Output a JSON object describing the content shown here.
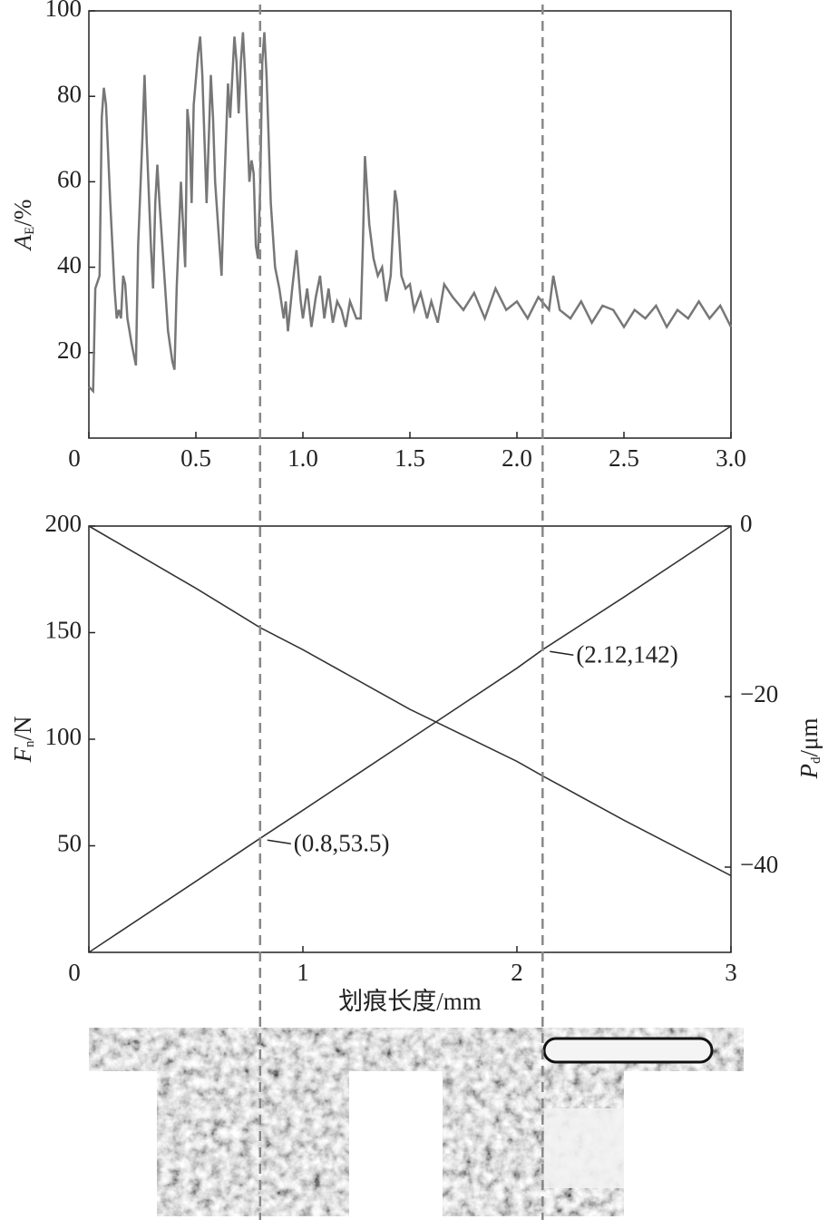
{
  "chart_data": [
    {
      "type": "line",
      "ylabel": {
        "symbol": "A",
        "subscript": "E",
        "unit": "/%"
      },
      "xlim": [
        0,
        3
      ],
      "ylim": [
        0,
        100
      ],
      "xticks": [
        0,
        0.5,
        {
          "value": 1,
          "label": "1.0"
        },
        1.5,
        {
          "value": 2,
          "label": "2.0"
        },
        2.5,
        {
          "value": 3,
          "label": "3.0"
        }
      ],
      "yticks": [
        20,
        40,
        60,
        80,
        100
      ],
      "x": [
        0,
        0.02,
        0.03,
        0.05,
        0.06,
        0.07,
        0.08,
        0.1,
        0.12,
        0.13,
        0.14,
        0.15,
        0.16,
        0.17,
        0.18,
        0.2,
        0.22,
        0.23,
        0.25,
        0.26,
        0.27,
        0.29,
        0.3,
        0.31,
        0.32,
        0.33,
        0.35,
        0.37,
        0.39,
        0.4,
        0.41,
        0.43,
        0.44,
        0.45,
        0.46,
        0.47,
        0.48,
        0.49,
        0.51,
        0.52,
        0.53,
        0.55,
        0.56,
        0.57,
        0.58,
        0.59,
        0.61,
        0.62,
        0.63,
        0.65,
        0.66,
        0.68,
        0.69,
        0.7,
        0.71,
        0.72,
        0.73,
        0.75,
        0.76,
        0.77,
        0.78,
        0.79,
        0.8,
        0.81,
        0.82,
        0.83,
        0.85,
        0.87,
        0.89,
        0.91,
        0.92,
        0.93,
        0.95,
        0.97,
        0.99,
        1.0,
        1.02,
        1.04,
        1.06,
        1.08,
        1.1,
        1.12,
        1.14,
        1.16,
        1.18,
        1.2,
        1.22,
        1.25,
        1.27,
        1.28,
        1.29,
        1.31,
        1.33,
        1.35,
        1.37,
        1.39,
        1.41,
        1.43,
        1.44,
        1.46,
        1.48,
        1.5,
        1.52,
        1.55,
        1.58,
        1.6,
        1.63,
        1.66,
        1.7,
        1.75,
        1.8,
        1.85,
        1.9,
        1.95,
        2.0,
        2.05,
        2.1,
        2.15,
        2.17,
        2.2,
        2.25,
        2.3,
        2.35,
        2.4,
        2.45,
        2.5,
        2.55,
        2.6,
        2.65,
        2.7,
        2.75,
        2.8,
        2.85,
        2.9,
        2.95,
        3.0
      ],
      "series": [
        {
          "color": "#777777",
          "values": [
            12,
            11,
            35,
            38,
            75,
            82,
            78,
            55,
            35,
            28,
            30,
            28,
            38,
            36,
            28,
            22,
            17,
            45,
            70,
            85,
            70,
            45,
            35,
            55,
            64,
            55,
            40,
            25,
            18,
            16,
            35,
            60,
            50,
            40,
            77,
            72,
            55,
            78,
            90,
            94,
            85,
            55,
            70,
            85,
            75,
            60,
            45,
            38,
            55,
            83,
            75,
            94,
            88,
            76,
            88,
            95,
            85,
            60,
            65,
            62,
            45,
            42,
            58,
            88,
            95,
            85,
            55,
            40,
            35,
            28,
            32,
            25,
            35,
            44,
            32,
            28,
            35,
            26,
            33,
            38,
            28,
            35,
            27,
            32,
            30,
            26,
            32,
            28,
            28,
            45,
            66,
            50,
            42,
            38,
            40,
            32,
            38,
            58,
            55,
            38,
            35,
            36,
            30,
            34,
            28,
            32,
            27,
            36,
            33,
            30,
            34,
            28,
            35,
            30,
            32,
            28,
            33,
            30,
            38,
            30,
            28,
            32,
            27,
            31,
            30,
            26,
            30,
            28,
            31,
            26,
            30,
            28,
            32,
            28,
            31,
            26
          ]
        }
      ]
    },
    {
      "type": "line",
      "xlabel": "划痕长度/mm",
      "ylabel": {
        "symbol": "F",
        "subscript": "n",
        "unit": "/N"
      },
      "y2label": {
        "symbol": "P",
        "subscript": "d",
        "unit": "/μm"
      },
      "xlim": [
        0,
        3
      ],
      "ylim": [
        0,
        200
      ],
      "y2lim": [
        -50,
        0
      ],
      "xticks": [
        0,
        1,
        2,
        3
      ],
      "yticks": [
        50,
        100,
        150,
        200
      ],
      "y2ticks": [
        {
          "value": -40,
          "label": "−40"
        },
        {
          "value": -20,
          "label": "−20"
        },
        0
      ],
      "x": [
        0,
        0.5,
        0.8,
        1,
        1.5,
        2,
        2.12,
        2.5,
        3
      ],
      "series": [
        {
          "color": "#333333",
          "values": [
            0,
            33.3,
            53.5,
            66.7,
            100,
            133.3,
            142,
            166.7,
            200
          ]
        },
        {
          "color": "#333333",
          "axis": "y2",
          "values": [
            0,
            -7.3,
            -11.9,
            -14.5,
            -21.5,
            -27.6,
            -29.3,
            -34.5,
            -41
          ]
        }
      ],
      "annotations": [
        {
          "text": "(0.8,53.5)",
          "x": 0.8,
          "y": 53.5
        },
        {
          "text": "(2.12,142)",
          "x": 2.12,
          "y": 142
        }
      ],
      "vlines": [
        0.8,
        2.12
      ]
    }
  ]
}
